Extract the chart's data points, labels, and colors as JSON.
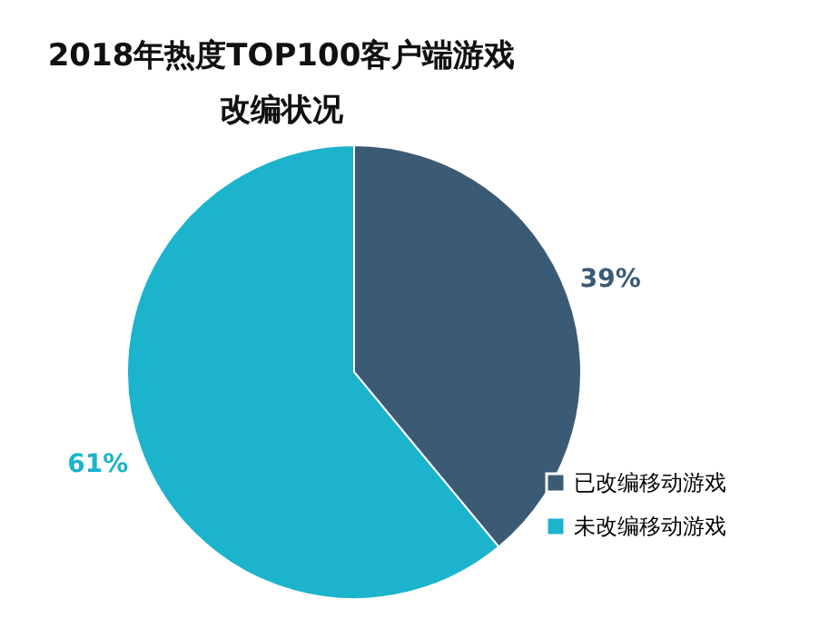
{
  "chart_data": {
    "type": "pie",
    "title": [
      "2018年热度TOP100客户端游戏",
      "改编状况"
    ],
    "categories": [
      "已改编移动游戏",
      "未改编移动游戏"
    ],
    "values": [
      39,
      61
    ],
    "colors": [
      "#3b5a74",
      "#1cb4cc"
    ],
    "value_labels": [
      "39%",
      "61%"
    ],
    "legend": "bottom right"
  }
}
